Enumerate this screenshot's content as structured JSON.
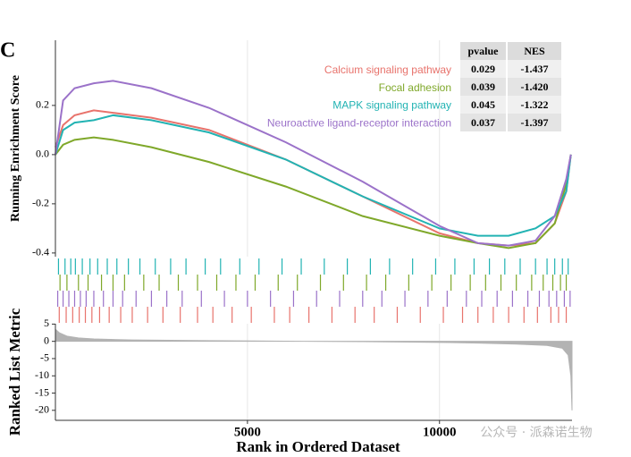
{
  "panel_label": "C",
  "watermark": "公众号 · 派森诺生物",
  "chart_data": [
    {
      "type": "line",
      "ylabel": "Running Enrichment Score",
      "xlim": [
        0,
        13450
      ],
      "ylim": [
        -0.415,
        0.465
      ],
      "yticks": [
        {
          "value": 0.2,
          "label": "0.2"
        },
        {
          "value": 0,
          "label": "0.0"
        },
        {
          "value": -0.2,
          "label": "-0.2"
        },
        {
          "value": -0.4,
          "label": "-0.4"
        }
      ],
      "xticks": [
        5000,
        10000
      ],
      "grid": true,
      "x": [
        0,
        200,
        500,
        1000,
        1500,
        2500,
        4000,
        6000,
        8000,
        10000,
        11000,
        11800,
        12500,
        13000,
        13300,
        13420
      ],
      "series": [
        {
          "name": "Calcium signaling pathway",
          "color": "#e8736c",
          "values": [
            0.03,
            0.12,
            0.16,
            0.18,
            0.17,
            0.15,
            0.1,
            -0.02,
            -0.17,
            -0.32,
            -0.36,
            -0.37,
            -0.36,
            -0.28,
            -0.15,
            0.0
          ]
        },
        {
          "name": "Focal adhesion",
          "color": "#7fa82a",
          "values": [
            0.0,
            0.04,
            0.06,
            0.07,
            0.06,
            0.03,
            -0.03,
            -0.13,
            -0.25,
            -0.33,
            -0.36,
            -0.38,
            -0.36,
            -0.28,
            -0.12,
            0.0
          ]
        },
        {
          "name": "MAPK signaling pathway",
          "color": "#22b3b3",
          "values": [
            0.0,
            0.1,
            0.13,
            0.14,
            0.16,
            0.14,
            0.09,
            -0.02,
            -0.17,
            -0.3,
            -0.33,
            -0.33,
            -0.3,
            -0.25,
            -0.15,
            0.0
          ]
        },
        {
          "name": "Neuroactive ligand-receptor interaction",
          "color": "#9b72c9",
          "values": [
            0.0,
            0.22,
            0.27,
            0.29,
            0.3,
            0.27,
            0.19,
            0.05,
            -0.11,
            -0.29,
            -0.36,
            -0.37,
            -0.35,
            -0.25,
            -0.1,
            0.0
          ]
        }
      ],
      "table": {
        "columns": [
          "pvalue",
          "NES"
        ],
        "rows": [
          [
            "0.029",
            "-1.437"
          ],
          [
            "0.039",
            "-1.420"
          ],
          [
            "0.045",
            "-1.322"
          ],
          [
            "0.037",
            "-1.397"
          ]
        ]
      }
    },
    {
      "type": "rug",
      "xlim": [
        0,
        13450
      ],
      "series": [
        {
          "color": "#22b3b3",
          "x": [
            80,
            250,
            400,
            520,
            700,
            900,
            1100,
            1350,
            1600,
            1900,
            2200,
            2600,
            3000,
            3400,
            3900,
            4300,
            4800,
            5300,
            5900,
            6400,
            7000,
            7600,
            8200,
            8700,
            9300,
            9900,
            10400,
            10900,
            11300,
            11700,
            12100,
            12500,
            12800,
            13000,
            13200,
            13350
          ]
        },
        {
          "color": "#7fa82a",
          "x": [
            120,
            300,
            600,
            850,
            1200,
            1500,
            1800,
            2300,
            2700,
            3200,
            3700,
            4200,
            4700,
            5200,
            5800,
            6300,
            6900,
            7500,
            8100,
            8600,
            9200,
            9800,
            10300,
            10800,
            11200,
            11600,
            12000,
            12400,
            12700,
            12950,
            13150,
            13300
          ]
        },
        {
          "color": "#9b72c9",
          "x": [
            60,
            200,
            350,
            500,
            650,
            800,
            1000,
            1250,
            1500,
            1750,
            2100,
            2500,
            2900,
            3300,
            3800,
            4400,
            5000,
            5600,
            6200,
            6800,
            7400,
            8000,
            8500,
            9100,
            9700,
            10200,
            10700,
            11100,
            11500,
            11900,
            12300,
            12600,
            12850,
            13050,
            13250,
            13400
          ]
        },
        {
          "color": "#e8736c",
          "x": [
            100,
            280,
            450,
            620,
            780,
            950,
            1150,
            1400,
            1700,
            2000,
            2400,
            2800,
            3250,
            3700,
            4100,
            4600,
            5100,
            5700,
            6100,
            6600,
            7200,
            7800,
            8300,
            8900,
            9500,
            10100,
            10600,
            11000,
            11400,
            11800,
            12200,
            12550,
            12900,
            13100,
            13300
          ]
        }
      ]
    },
    {
      "type": "area",
      "ylabel": "Ranked List Metric",
      "xlabel": "Rank in Ordered Dataset",
      "xlim": [
        0,
        13450
      ],
      "ylim": [
        -22.9,
        5.1
      ],
      "yticks": [
        5,
        0,
        -5,
        -10,
        -15,
        -20
      ],
      "xticks": [
        5000,
        10000
      ],
      "grid": true,
      "color": "#b3b3b3",
      "x": [
        0,
        100,
        300,
        600,
        1000,
        2000,
        4000,
        6000,
        8000,
        10000,
        11000,
        12000,
        12800,
        13200,
        13350,
        13420,
        13450
      ],
      "values": [
        3.5,
        2.5,
        1.5,
        1.0,
        0.7,
        0.4,
        0.2,
        0.05,
        -0.1,
        -0.3,
        -0.5,
        -0.8,
        -1.2,
        -2,
        -4,
        -10,
        -20
      ]
    }
  ]
}
